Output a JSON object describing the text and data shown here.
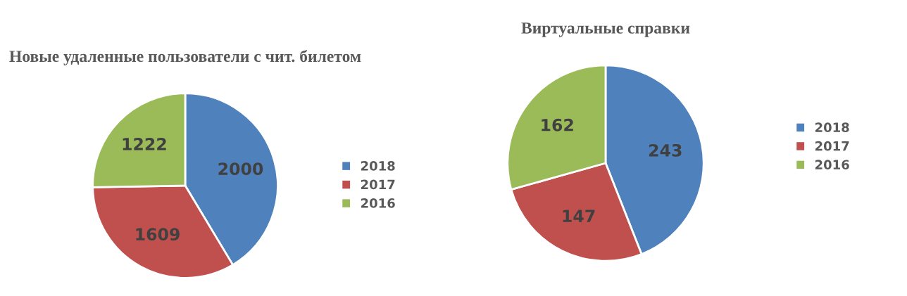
{
  "chart_data": [
    {
      "type": "pie",
      "title": "Новые удаленные пользователи с чит. билетом",
      "categories": [
        "2018",
        "2017",
        "2016"
      ],
      "values": [
        2000,
        1609,
        1222
      ],
      "colors": [
        "#4f81bd",
        "#c0504d",
        "#9bbb59"
      ],
      "data_labels": true,
      "legend": "right"
    },
    {
      "type": "pie",
      "title": "Виртуальные справки",
      "categories": [
        "2018",
        "2017",
        "2016"
      ],
      "values": [
        243,
        147,
        162
      ],
      "colors": [
        "#4f81bd",
        "#c0504d",
        "#9bbb59"
      ],
      "data_labels": true,
      "legend": "right"
    }
  ]
}
